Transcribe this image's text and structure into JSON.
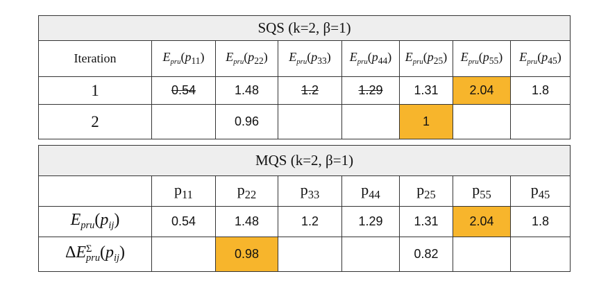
{
  "tables": [
    {
      "title": "SQS (k=2, β=1)",
      "corner": "Iteration",
      "columns": [
        [
          {
            "text": "E",
            "style": "italic"
          },
          {
            "text": "pru",
            "style": "sub"
          },
          {
            "text": "("
          },
          {
            "text": "p",
            "style": "italic"
          },
          {
            "text": "11",
            "style": "sub"
          },
          {
            "text": ")"
          }
        ],
        [
          {
            "text": "E",
            "style": "italic"
          },
          {
            "text": "pru",
            "style": "sub"
          },
          {
            "text": "("
          },
          {
            "text": "p",
            "style": "italic"
          },
          {
            "text": "22",
            "style": "sub"
          },
          {
            "text": ")"
          }
        ],
        [
          {
            "text": "E",
            "style": "italic"
          },
          {
            "text": "pru",
            "style": "sub"
          },
          {
            "text": "("
          },
          {
            "text": "p",
            "style": "italic"
          },
          {
            "text": "33",
            "style": "sub"
          },
          {
            "text": ")"
          }
        ],
        [
          {
            "text": "E",
            "style": "italic"
          },
          {
            "text": "pru",
            "style": "sub"
          },
          {
            "text": "("
          },
          {
            "text": "p",
            "style": "italic"
          },
          {
            "text": "44",
            "style": "sub"
          },
          {
            "text": ")"
          }
        ],
        [
          {
            "text": "E",
            "style": "italic"
          },
          {
            "text": "pru",
            "style": "sub"
          },
          {
            "text": "("
          },
          {
            "text": "p",
            "style": "italic"
          },
          {
            "text": "25",
            "style": "sub"
          },
          {
            "text": ")"
          }
        ],
        [
          {
            "text": "E",
            "style": "italic"
          },
          {
            "text": "pru",
            "style": "sub"
          },
          {
            "text": "("
          },
          {
            "text": "p",
            "style": "italic"
          },
          {
            "text": "55",
            "style": "sub"
          },
          {
            "text": ")"
          }
        ],
        [
          {
            "text": "E",
            "style": "italic"
          },
          {
            "text": "pru",
            "style": "sub"
          },
          {
            "text": "("
          },
          {
            "text": "p",
            "style": "italic"
          },
          {
            "text": "45",
            "style": "sub"
          },
          {
            "text": ")"
          }
        ]
      ],
      "rows": [
        {
          "label": "1",
          "cells": [
            {
              "value": 0.54,
              "strike": true
            },
            {
              "value": 1.48
            },
            {
              "value": 1.2,
              "strike": true
            },
            {
              "value": 1.29,
              "strike": true
            },
            {
              "value": 1.31
            },
            {
              "value": 2.04,
              "highlight": "#f7b52c"
            },
            {
              "value": 1.8
            }
          ]
        },
        {
          "label": "2",
          "cells": [
            null,
            {
              "value": 0.96
            },
            null,
            null,
            {
              "value": 1,
              "highlight": "#f7b52c"
            },
            null,
            null
          ]
        }
      ]
    },
    {
      "title": "MQS (k=2, β=1)",
      "columns": [
        [
          {
            "text": "p"
          },
          {
            "text": "11",
            "style": "sub"
          }
        ],
        [
          {
            "text": "p"
          },
          {
            "text": "22",
            "style": "sub"
          }
        ],
        [
          {
            "text": "p"
          },
          {
            "text": "33",
            "style": "sub"
          }
        ],
        [
          {
            "text": "p"
          },
          {
            "text": "44",
            "style": "sub"
          }
        ],
        [
          {
            "text": "p"
          },
          {
            "text": "25",
            "style": "sub"
          }
        ],
        [
          {
            "text": "p"
          },
          {
            "text": "55",
            "style": "sub"
          }
        ],
        [
          {
            "text": "p"
          },
          {
            "text": "45",
            "style": "sub"
          }
        ]
      ],
      "rows": [
        {
          "label": [
            {
              "text": "E",
              "style": "italic"
            },
            {
              "text": "pru",
              "style": "sub"
            },
            {
              "text": "("
            },
            {
              "text": "p",
              "style": "italic"
            },
            {
              "text": "ij",
              "style": "sub"
            },
            {
              "text": ")"
            }
          ],
          "cells": [
            {
              "value": 0.54
            },
            {
              "value": 1.48
            },
            {
              "value": 1.2
            },
            {
              "value": 1.29
            },
            {
              "value": 1.31
            },
            {
              "value": 2.04,
              "highlight": "#f7b52c"
            },
            {
              "value": 1.8
            }
          ]
        },
        {
          "label": [
            {
              "text": "Δ"
            },
            {
              "text": "E",
              "style": "italic"
            },
            {
              "sup": "Σ",
              "sub": "pru"
            },
            {
              "text": "("
            },
            {
              "text": "p",
              "style": "italic"
            },
            {
              "text": "ij",
              "style": "sub"
            },
            {
              "text": ")"
            }
          ],
          "cells": [
            null,
            {
              "value": 0.98,
              "highlight": "#f7b52c"
            },
            null,
            null,
            {
              "value": 0.82
            },
            null,
            null
          ]
        }
      ]
    }
  ]
}
